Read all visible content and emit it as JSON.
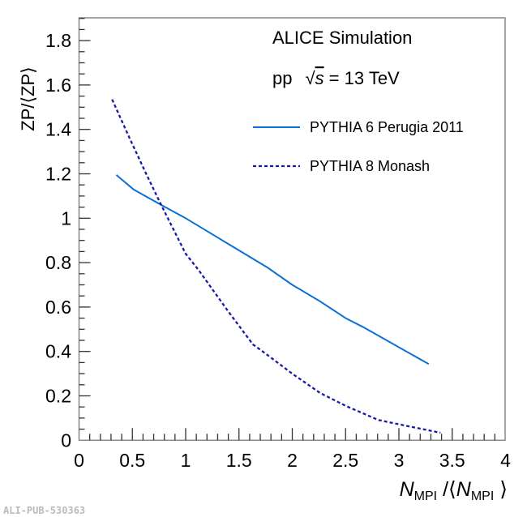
{
  "chart_data": {
    "type": "line",
    "xlabel": "N_MPI / ⟨N_MPI⟩",
    "xlabel_parts": {
      "n": "N",
      "sub": "MPI",
      "mid": " /⟨",
      "n2": "N",
      "sub2": "MPI",
      "end": " ⟩"
    },
    "ylabel": "ZP/⟨ZP⟩",
    "xlim": [
      0,
      4
    ],
    "ylim": [
      0,
      1.9
    ],
    "xticks": [
      "0",
      "0.5",
      "1",
      "1.5",
      "2",
      "2.5",
      "3",
      "3.5",
      "4"
    ],
    "xtick_values": [
      0,
      0.5,
      1,
      1.5,
      2,
      2.5,
      3,
      3.5,
      4
    ],
    "yticks": [
      "0",
      "0.2",
      "0.4",
      "0.6",
      "0.8",
      "1",
      "1.2",
      "1.4",
      "1.6",
      "1.8"
    ],
    "ytick_values": [
      0,
      0.2,
      0.4,
      0.6,
      0.8,
      1.0,
      1.2,
      1.4,
      1.6,
      1.8
    ],
    "grid": false,
    "legend_position": "top-right",
    "annotations": {
      "title": "ALICE Simulation",
      "system": "pp",
      "energy_sqrt": "s",
      "energy_value": " = 13 TeV"
    },
    "series": [
      {
        "name": "PYTHIA 6 Perugia 2011",
        "color": "#0a6fd6",
        "style": "solid",
        "x": [
          0.35,
          0.51,
          0.77,
          1.0,
          1.5,
          1.77,
          2.0,
          2.26,
          2.5,
          2.66,
          3.28
        ],
        "y": [
          1.195,
          1.13,
          1.06,
          1.0,
          0.855,
          0.777,
          0.7,
          0.626,
          0.55,
          0.511,
          0.343
        ]
      },
      {
        "name": "PYTHIA 8 Monash",
        "color": "#1a1aa8",
        "style": "dashed",
        "x": [
          0.31,
          0.46,
          0.62,
          0.77,
          1.0,
          1.12,
          1.4,
          1.63,
          1.77,
          2.0,
          2.26,
          2.5,
          2.81,
          3.1,
          3.39
        ],
        "y": [
          1.535,
          1.375,
          1.21,
          1.06,
          0.84,
          0.767,
          0.58,
          0.432,
          0.383,
          0.3,
          0.213,
          0.155,
          0.091,
          0.062,
          0.034
        ]
      }
    ]
  },
  "footer": {
    "publication_id": "ALI-PUB-530363"
  }
}
